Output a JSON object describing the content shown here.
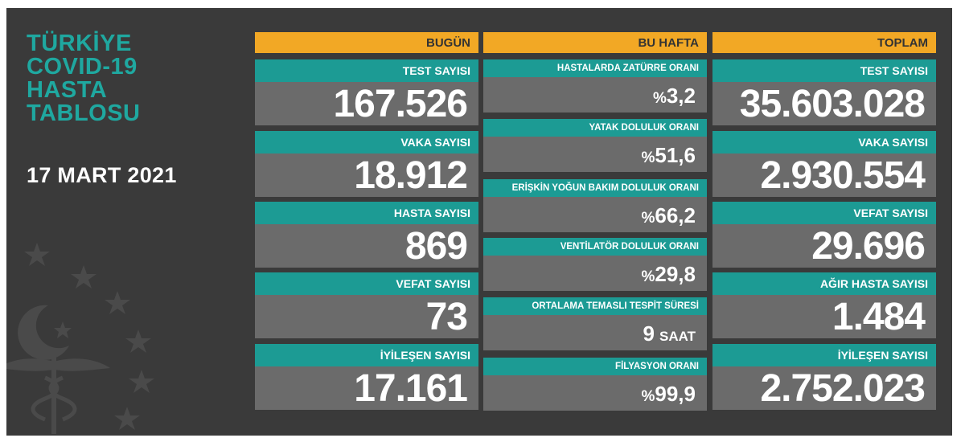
{
  "title_lines": [
    "TÜRKİYE",
    "COVID-19",
    "HASTA",
    "TABLOSU"
  ],
  "date": "17 MART 2021",
  "colors": {
    "accent_teal": "#1c9b94",
    "header_orange": "#f2a825",
    "panel_bg": "#3a3a3a",
    "value_bg": "#6b6b6b"
  },
  "today": {
    "header": "BUGÜN",
    "items": [
      {
        "label": "TEST SAYISI",
        "value": "167.526"
      },
      {
        "label": "VAKA SAYISI",
        "value": "18.912"
      },
      {
        "label": "HASTA SAYISI",
        "value": "869"
      },
      {
        "label": "VEFAT SAYISI",
        "value": "73"
      },
      {
        "label": "İYİLEŞEN SAYISI",
        "value": "17.161"
      }
    ]
  },
  "week": {
    "header": "BU HAFTA",
    "items": [
      {
        "label": "HASTALARDA ZATÜRRE ORANI",
        "prefix": "%",
        "value": "3,2",
        "unit": ""
      },
      {
        "label": "YATAK DOLULUK ORANI",
        "prefix": "%",
        "value": "51,6",
        "unit": ""
      },
      {
        "label": "ERİŞKİN YOĞUN BAKIM DOLULUK ORANI",
        "prefix": "%",
        "value": "66,2",
        "unit": ""
      },
      {
        "label": "VENTİLATÖR DOLULUK ORANI",
        "prefix": "%",
        "value": "29,8",
        "unit": ""
      },
      {
        "label": "ORTALAMA TEMASLI TESPİT SÜRESİ",
        "prefix": "",
        "value": "9",
        "unit": "SAAT"
      },
      {
        "label": "FİLYASYON ORANI",
        "prefix": "%",
        "value": "99,9",
        "unit": ""
      }
    ]
  },
  "total": {
    "header": "TOPLAM",
    "items": [
      {
        "label": "TEST SAYISI",
        "value": "35.603.028"
      },
      {
        "label": "VAKA SAYISI",
        "value": "2.930.554"
      },
      {
        "label": "VEFAT SAYISI",
        "value": "29.696"
      },
      {
        "label": "AĞIR HASTA SAYISI",
        "value": "1.484"
      },
      {
        "label": "İYİLEŞEN SAYISI",
        "value": "2.752.023"
      }
    ]
  }
}
